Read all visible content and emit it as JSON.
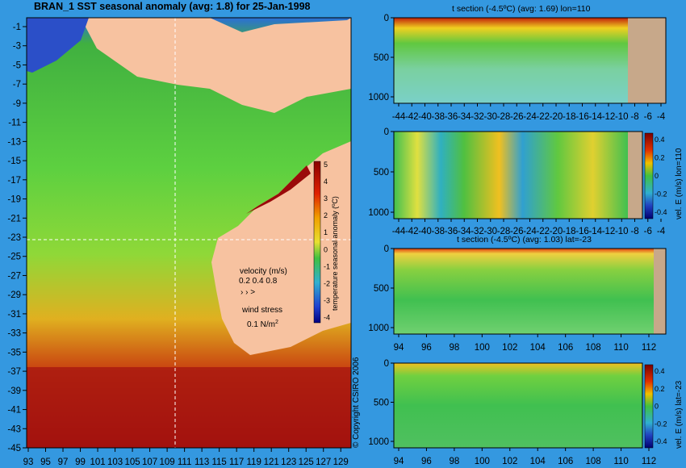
{
  "titles": {
    "main": "BRAN_1  SST seasonal anomaly  (avg: 1.8) for 25-Jan-1998",
    "t1": "t section (-4.5ºC) (avg: 1.69) lon=110",
    "t3": "t section (-4.5ºC) (avg: 1.03) lat=-23",
    "copyright": "© Copyright CSIRO 2006"
  },
  "legend": {
    "velocity_label": "velocity (m/s)",
    "velocity_scale": "0.2 0.4 0.8",
    "wind_label": "wind stress",
    "wind_value": "0.1 N/m",
    "wind_exp": "2"
  },
  "colors": {
    "land": "#f7c2a0",
    "ocean_blue": "#3498e0",
    "deep_red": "#9a0a0a",
    "bottom_tan": "#c7a88a"
  },
  "chart_data": [
    {
      "type": "heatmap",
      "title": "BRAN_1  SST seasonal anomaly  (avg: 1.8) for 25-Jan-1998",
      "x_ticks": [
        "93",
        "95",
        "97",
        "99",
        "101",
        "103",
        "105",
        "107",
        "109",
        "111",
        "113",
        "115",
        "117",
        "119",
        "121",
        "123",
        "125",
        "127",
        "129"
      ],
      "y_ticks": [
        "-1",
        "-3",
        "-5",
        "-7",
        "-9",
        "-11",
        "-13",
        "-15",
        "-17",
        "-19",
        "-21",
        "-23",
        "-25",
        "-27",
        "-29",
        "-31",
        "-33",
        "-35",
        "-37",
        "-39",
        "-41",
        "-43",
        "-45"
      ],
      "xlim": [
        93,
        130
      ],
      "ylim": [
        -45,
        0
      ],
      "crosshair": {
        "lon": 110,
        "lat": -23
      },
      "colorbar": {
        "label": "temperature seasonal anomaly (ºC)",
        "ticks": [
          "5",
          "4",
          "3",
          "2",
          "1",
          "0",
          "-1",
          "-2",
          "-3",
          "-4"
        ],
        "range": [
          -4,
          5
        ]
      },
      "avg": 1.8
    },
    {
      "type": "heatmap",
      "title": "t section (-4.5ºC) (avg: 1.69) lon=110",
      "x_ticks": [
        "-44",
        "-42",
        "-40",
        "-38",
        "-36",
        "-34",
        "-32",
        "-30",
        "-28",
        "-26",
        "-24",
        "-22",
        "-20",
        "-18",
        "-16",
        "-14",
        "-12",
        "-10",
        "-8",
        "-6",
        "-4"
      ],
      "y_ticks": [
        "0",
        "500",
        "1000"
      ],
      "avg": 1.69
    },
    {
      "type": "heatmap",
      "title": "",
      "x_ticks": [
        "-44",
        "-42",
        "-40",
        "-38",
        "-36",
        "-34",
        "-32",
        "-30",
        "-28",
        "-26",
        "-24",
        "-22",
        "-20",
        "-18",
        "-16",
        "-14",
        "-12",
        "-10",
        "-8",
        "-6",
        "-4"
      ],
      "y_ticks": [
        "0",
        "500",
        "1000"
      ],
      "colorbar": {
        "label": "vel. E (m/s) lon=110",
        "ticks": [
          "0.4",
          "0.2",
          "0",
          "-0.2",
          "-0.4"
        ],
        "range": [
          -0.5,
          0.5
        ]
      }
    },
    {
      "type": "heatmap",
      "title": "t section (-4.5ºC) (avg: 1.03) lat=-23",
      "x_ticks": [
        "94",
        "96",
        "98",
        "100",
        "102",
        "104",
        "106",
        "108",
        "110",
        "112"
      ],
      "y_ticks": [
        "0",
        "500",
        "1000"
      ],
      "avg": 1.03
    },
    {
      "type": "heatmap",
      "title": "",
      "x_ticks": [
        "94",
        "96",
        "98",
        "100",
        "102",
        "104",
        "106",
        "108",
        "110",
        "112"
      ],
      "y_ticks": [
        "0",
        "500",
        "1000"
      ],
      "colorbar": {
        "label": "vel. E (m/s) lat=-23",
        "ticks": [
          "0.4",
          "0.2",
          "0",
          "-0.2",
          "-0.4"
        ],
        "range": [
          -0.5,
          0.5
        ]
      }
    }
  ]
}
